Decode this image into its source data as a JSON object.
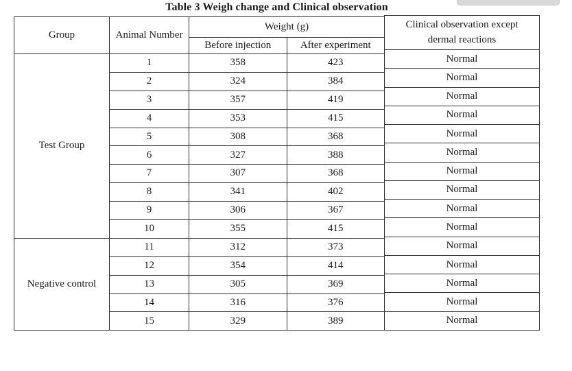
{
  "title": "Table 3 Weigh change and Clinical observation",
  "table": {
    "headers": {
      "group": "Group",
      "animal_number": "Animal Number",
      "weight": "Weight (g)",
      "before": "Before injection",
      "after": "After experiment",
      "clinical": "Clinical observation except dermal reactions"
    },
    "groups": [
      {
        "label": "Test Group",
        "rows": [
          {
            "n": "1",
            "before": "358",
            "after": "423"
          },
          {
            "n": "2",
            "before": "324",
            "after": "384"
          },
          {
            "n": "3",
            "before": "357",
            "after": "419"
          },
          {
            "n": "4",
            "before": "353",
            "after": "415"
          },
          {
            "n": "5",
            "before": "308",
            "after": "368"
          },
          {
            "n": "6",
            "before": "327",
            "after": "388"
          },
          {
            "n": "7",
            "before": "307",
            "after": "368"
          },
          {
            "n": "8",
            "before": "341",
            "after": "402"
          },
          {
            "n": "9",
            "before": "306",
            "after": "367"
          },
          {
            "n": "10",
            "before": "355",
            "after": "415"
          }
        ]
      },
      {
        "label": "Negative control",
        "rows": [
          {
            "n": "11",
            "before": "312",
            "after": "373"
          },
          {
            "n": "12",
            "before": "354",
            "after": "414"
          },
          {
            "n": "13",
            "before": "305",
            "after": "369"
          },
          {
            "n": "14",
            "before": "316",
            "after": "376"
          },
          {
            "n": "15",
            "before": "329",
            "after": "389"
          }
        ]
      }
    ],
    "clinical_values": [
      "Normal",
      "Normal",
      "Normal",
      "Normal",
      "Normal",
      "Normal",
      "Normal",
      "Normal",
      "Normal",
      "Normal",
      "Normal",
      "Normal",
      "Normal",
      "Normal",
      "Normal"
    ]
  }
}
